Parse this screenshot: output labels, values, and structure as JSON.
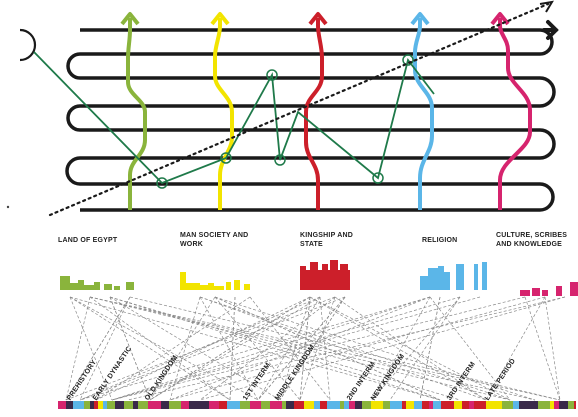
{
  "themes": [
    {
      "label": "LAND OF EGYPT",
      "color": "#8ab43c"
    },
    {
      "label": "MAN SOCIETY AND\nWORK",
      "color": "#f2e400"
    },
    {
      "label": "KINGSHIP AND\nSTATE",
      "color": "#cc1f2a"
    },
    {
      "label": "RELIGION",
      "color": "#5bb6e8"
    },
    {
      "label": "CULTURE, SCRIBES\nAND KNOWLEDGE",
      "color": "#d6246e"
    }
  ],
  "periods": [
    "PREHISTORY",
    "EARLY DYNASTIC",
    "OLD KINGDOM",
    "1ST INTERM",
    "MIDDLE KINGDOM",
    "2ND INTERM",
    "NEW KINGDOM",
    "3RD INTERM",
    "LATE PERIOD"
  ],
  "colors": {
    "track": "#1a1a1a",
    "path": "#1f7a4a",
    "dotted": "#1a1a1a",
    "links": "#888888",
    "timeline_dark": "#3a2a4a"
  }
}
